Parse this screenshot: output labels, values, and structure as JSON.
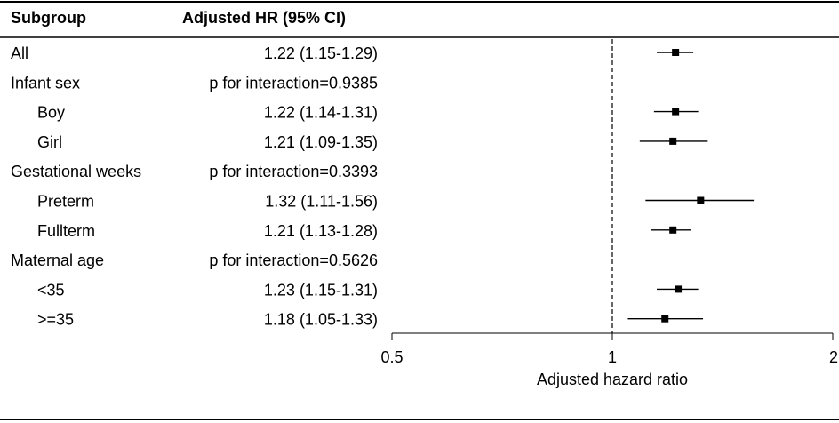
{
  "chart_data": {
    "type": "forest",
    "headers": {
      "subgroup": "Subgroup",
      "hr": "Adjusted HR (95% CI)"
    },
    "rows": [
      {
        "label": "All",
        "indent": 0,
        "hr_text": "1.22 (1.15-1.29)",
        "hr": 1.22,
        "lo": 1.15,
        "hi": 1.29
      },
      {
        "label": "Infant sex",
        "indent": 0,
        "hr_text": "p for interaction=0.9385"
      },
      {
        "label": "Boy",
        "indent": 1,
        "hr_text": "1.22 (1.14-1.31)",
        "hr": 1.22,
        "lo": 1.14,
        "hi": 1.31
      },
      {
        "label": "Girl",
        "indent": 1,
        "hr_text": "1.21 (1.09-1.35)",
        "hr": 1.21,
        "lo": 1.09,
        "hi": 1.35
      },
      {
        "label": "Gestational weeks",
        "indent": 0,
        "hr_text": "p for interaction=0.3393"
      },
      {
        "label": "Preterm",
        "indent": 1,
        "hr_text": "1.32 (1.11-1.56)",
        "hr": 1.32,
        "lo": 1.11,
        "hi": 1.56
      },
      {
        "label": "Fullterm",
        "indent": 1,
        "hr_text": "1.21 (1.13-1.28)",
        "hr": 1.21,
        "lo": 1.13,
        "hi": 1.28
      },
      {
        "label": "Maternal age",
        "indent": 0,
        "hr_text": "p for interaction=0.5626"
      },
      {
        "label": "<35",
        "indent": 1,
        "hr_text": "1.23 (1.15-1.31)",
        "hr": 1.23,
        "lo": 1.15,
        "hi": 1.31
      },
      {
        "label": ">=35",
        "indent": 1,
        "hr_text": "1.18 (1.05-1.33)",
        "hr": 1.18,
        "lo": 1.05,
        "hi": 1.33
      }
    ],
    "x_axis": {
      "label": "Adjusted hazard ratio",
      "scale": "log",
      "range": [
        0.5,
        2
      ],
      "ticks": [
        0.5,
        1,
        2
      ],
      "tick_labels": [
        "0.5",
        "1",
        "2"
      ],
      "reference": 1
    }
  }
}
